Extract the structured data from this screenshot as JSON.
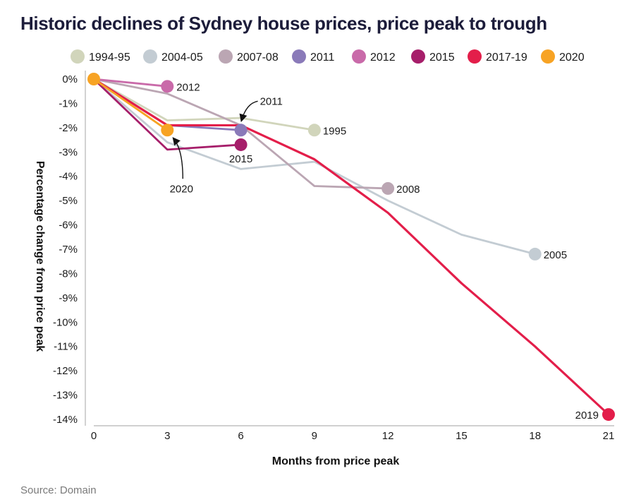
{
  "title": "Historic declines of Sydney house prices, price peak to trough",
  "source": "Source: Domain",
  "chart_data": {
    "type": "line",
    "title": "Historic declines of Sydney house prices, price peak to trough",
    "xlabel": "Months from price peak",
    "ylabel": "Percentage change from price peak",
    "xlim": [
      0,
      21
    ],
    "ylim": [
      -14,
      0
    ],
    "xticks": [
      "0",
      "3",
      "6",
      "9",
      "12",
      "15",
      "18",
      "21"
    ],
    "yticks": [
      "0%",
      "-1%",
      "-2%",
      "-3%",
      "-4%",
      "-5%",
      "-6%",
      "-7%",
      "-8%",
      "-9%",
      "-10%",
      "-11%",
      "-12%",
      "-13%",
      "-14%"
    ],
    "grid": false,
    "legend_position": "top",
    "series": [
      {
        "name": "1994-95",
        "color": "#d1d5bb",
        "x": [
          0,
          3,
          6,
          9
        ],
        "y": [
          0,
          -1.7,
          -1.6,
          -2.1
        ],
        "end_label": "1995"
      },
      {
        "name": "2004-05",
        "color": "#c3ccd3",
        "x": [
          0,
          3,
          6,
          9,
          12,
          15,
          18
        ],
        "y": [
          0,
          -2.6,
          -3.7,
          -3.4,
          -5.0,
          -6.4,
          -7.2
        ],
        "end_label": "2005"
      },
      {
        "name": "2007-08",
        "color": "#bba6b3",
        "x": [
          0,
          3,
          6,
          9,
          12
        ],
        "y": [
          0,
          -0.6,
          -1.9,
          -4.4,
          -4.5
        ],
        "end_label": "2008"
      },
      {
        "name": "2011",
        "color": "#8a7ab9",
        "x": [
          0,
          3,
          6
        ],
        "y": [
          0,
          -1.9,
          -2.1
        ],
        "end_label": "2011"
      },
      {
        "name": "2012",
        "color": "#c96aa9",
        "x": [
          0,
          3
        ],
        "y": [
          0,
          -0.3
        ],
        "end_label": "2012"
      },
      {
        "name": "2015",
        "color": "#a61e6a",
        "x": [
          0,
          3,
          6
        ],
        "y": [
          0,
          -2.9,
          -2.7
        ],
        "end_label": "2015"
      },
      {
        "name": "2017-19",
        "color": "#e31e4a",
        "x": [
          0,
          3,
          6,
          9,
          12,
          15,
          18,
          21
        ],
        "y": [
          0,
          -1.9,
          -1.9,
          -3.3,
          -5.5,
          -8.4,
          -11.0,
          -13.8
        ],
        "end_label": "2019"
      },
      {
        "name": "2020",
        "color": "#f7a324",
        "x": [
          0,
          3
        ],
        "y": [
          0,
          -2.1
        ],
        "end_label": "2020"
      }
    ]
  }
}
